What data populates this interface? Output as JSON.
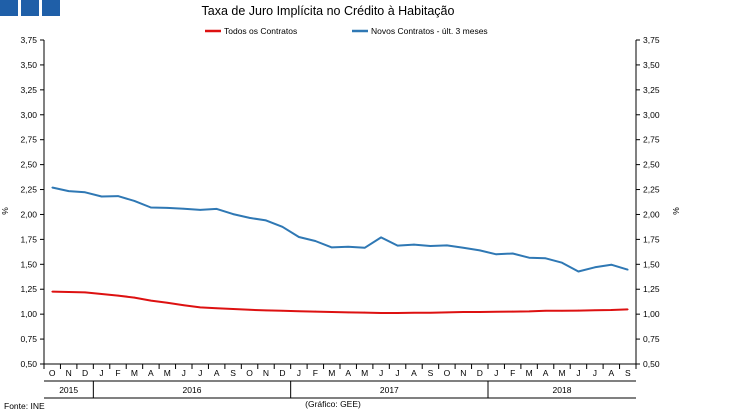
{
  "header": {
    "squares": [
      "square",
      "square",
      "square"
    ],
    "square_color": "#1f5fa8"
  },
  "footer": {
    "source": "Fonte: INE",
    "credit": "(Gráfico: GEE)"
  },
  "chart_data": {
    "type": "line",
    "title": "Taxa de Juro Implícita no Crédito à Habitação",
    "ylabel": "%",
    "ylabel_right": "%",
    "ylim": [
      0.5,
      3.75
    ],
    "yticks": [
      "0,50",
      "0,75",
      "1,00",
      "1,25",
      "1,50",
      "1,75",
      "2,00",
      "2,25",
      "2,50",
      "2,75",
      "3,00",
      "3,25",
      "3,50",
      "3,75"
    ],
    "categories": [
      "O",
      "N",
      "D",
      "J",
      "F",
      "M",
      "A",
      "M",
      "J",
      "J",
      "A",
      "S",
      "O",
      "N",
      "D",
      "J",
      "F",
      "M",
      "A",
      "M",
      "J",
      "J",
      "A",
      "S",
      "O",
      "N",
      "D",
      "J",
      "F",
      "M",
      "A",
      "M",
      "J",
      "J",
      "A",
      "S"
    ],
    "year_groups": [
      {
        "label": "2015",
        "start": 0,
        "end": 2
      },
      {
        "label": "2016",
        "start": 3,
        "end": 14
      },
      {
        "label": "2017",
        "start": 15,
        "end": 26
      },
      {
        "label": "2018",
        "start": 27,
        "end": 35
      }
    ],
    "legend_position": "top",
    "grid": false,
    "series": [
      {
        "name": "Todos os Contratos",
        "color": "#dd1111",
        "values": [
          1.226,
          1.222,
          1.218,
          1.202,
          1.186,
          1.166,
          1.136,
          1.114,
          1.09,
          1.068,
          1.06,
          1.052,
          1.044,
          1.038,
          1.034,
          1.03,
          1.026,
          1.022,
          1.018,
          1.016,
          1.012,
          1.012,
          1.014,
          1.014,
          1.018,
          1.022,
          1.022,
          1.024,
          1.026,
          1.028,
          1.034,
          1.034,
          1.036,
          1.04,
          1.042,
          1.048
        ]
      },
      {
        "name": "Novos Contratos - últ. 3 meses",
        "color": "#2f78b4",
        "values": [
          2.27,
          2.234,
          2.222,
          2.18,
          2.184,
          2.136,
          2.07,
          2.066,
          2.058,
          2.046,
          2.056,
          2.004,
          1.966,
          1.94,
          1.876,
          1.774,
          1.734,
          1.67,
          1.676,
          1.666,
          1.77,
          1.688,
          1.698,
          1.684,
          1.69,
          1.666,
          1.64,
          1.6,
          1.608,
          1.566,
          1.56,
          1.516,
          1.428,
          1.47,
          1.496,
          1.446
        ]
      }
    ]
  }
}
